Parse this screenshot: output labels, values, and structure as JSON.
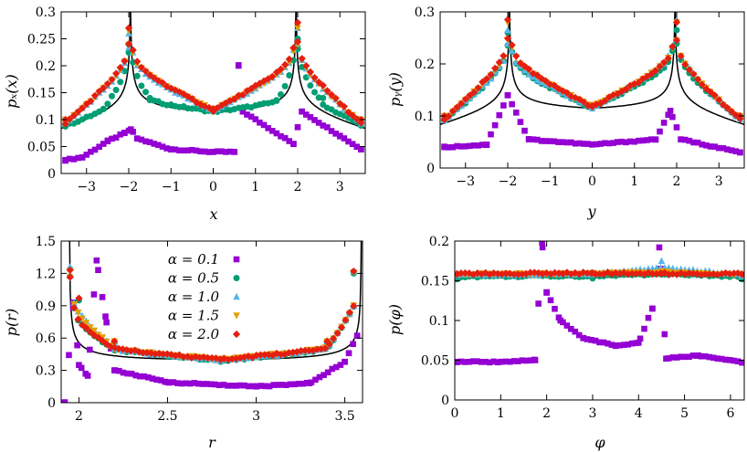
{
  "legend": [
    {
      "label": "α = 0.1",
      "color": "#9400d3",
      "marker": "square"
    },
    {
      "label": "α = 0.5",
      "color": "#009e73",
      "marker": "circle"
    },
    {
      "label": "α = 1.0",
      "color": "#56b4e9",
      "marker": "triangle-up"
    },
    {
      "label": "α = 1.5",
      "color": "#e69f00",
      "marker": "triangle-down"
    },
    {
      "label": "α = 2.0",
      "color": "#e51e10",
      "marker": "diamond"
    }
  ],
  "chart_data": [
    {
      "type": "scatter",
      "panel": "top-left",
      "xlabel": "x",
      "ylabel": "p_x(x)",
      "xlim": [
        -3.6,
        3.6
      ],
      "ylim": [
        0,
        0.3
      ],
      "xticks": [
        "−3",
        "−2",
        "−1",
        "0",
        "1",
        "2",
        "3"
      ],
      "xtick_values": [
        -3,
        -2,
        -1,
        0,
        1,
        2,
        3
      ],
      "yticks": [
        "0",
        "0.05",
        "0.1",
        "0.15",
        "0.2",
        "0.25",
        "0.3"
      ],
      "ytick_values": [
        0,
        0.05,
        0.1,
        0.15,
        0.2,
        0.25,
        0.3
      ],
      "theory_curve": "arcsine density with singularities at ±1.96",
      "series": [
        {
          "name": "α = 0.1",
          "points": [
            [
              -3.5,
              0.025
            ],
            [
              -3.1,
              0.03
            ],
            [
              -2.5,
              0.06
            ],
            [
              -2.1,
              0.075
            ],
            [
              -1.95,
              0.082
            ],
            [
              -1.8,
              0.065
            ],
            [
              -1,
              0.045
            ],
            [
              0,
              0.04
            ],
            [
              0.5,
              0.04
            ],
            [
              0.6,
              0.2
            ],
            [
              0.7,
              0.115
            ],
            [
              1.9,
              0.055
            ],
            [
              2.1,
              0.115
            ],
            [
              3.0,
              0.07
            ],
            [
              3.5,
              0.045
            ]
          ]
        },
        {
          "name": "α = 0.5",
          "points": [
            [
              -3.5,
              0.09
            ],
            [
              -2.6,
              0.12
            ],
            [
              -2.0,
              0.24
            ],
            [
              -1.5,
              0.14
            ],
            [
              0,
              0.115
            ],
            [
              1.5,
              0.135
            ],
            [
              2.0,
              0.25
            ],
            [
              2.6,
              0.14
            ],
            [
              3.5,
              0.095
            ]
          ]
        },
        {
          "name": "α = 1.0",
          "points": [
            [
              -3.5,
              0.1
            ],
            [
              -2.0,
              0.26
            ],
            [
              0,
              0.118
            ],
            [
              2.0,
              0.27
            ],
            [
              3.5,
              0.1
            ]
          ]
        },
        {
          "name": "α = 1.5",
          "points": [
            [
              -3.5,
              0.1
            ],
            [
              -2.0,
              0.265
            ],
            [
              0,
              0.12
            ],
            [
              2.0,
              0.27
            ],
            [
              3.5,
              0.1
            ]
          ]
        },
        {
          "name": "α = 2.0",
          "points": [
            [
              -3.5,
              0.1
            ],
            [
              -2.0,
              0.27
            ],
            [
              0,
              0.12
            ],
            [
              2.0,
              0.28
            ],
            [
              3.5,
              0.1
            ]
          ]
        }
      ]
    },
    {
      "type": "scatter",
      "panel": "top-right",
      "xlabel": "y",
      "ylabel": "p_y(y)",
      "xlim": [
        -3.6,
        3.6
      ],
      "ylim": [
        0,
        0.3
      ],
      "xticks": [
        "−3",
        "−2",
        "−1",
        "0",
        "1",
        "2",
        "3"
      ],
      "xtick_values": [
        -3,
        -2,
        -1,
        0,
        1,
        2,
        3
      ],
      "yticks": [
        "0",
        "0.1",
        "0.2",
        "0.3"
      ],
      "ytick_values": [
        0,
        0.1,
        0.2,
        0.3
      ],
      "theory_curve": "arcsine density with singularities at ±1.96",
      "series": [
        {
          "name": "α = 0.1",
          "points": [
            [
              -3.5,
              0.04
            ],
            [
              -2.5,
              0.045
            ],
            [
              -2.0,
              0.14
            ],
            [
              -1.5,
              0.055
            ],
            [
              0,
              0.045
            ],
            [
              1.5,
              0.055
            ],
            [
              1.85,
              0.11
            ],
            [
              2.1,
              0.055
            ],
            [
              3.5,
              0.03
            ]
          ]
        },
        {
          "name": "α = 0.5",
          "points": [
            [
              -3.5,
              0.095
            ],
            [
              -2.0,
              0.26
            ],
            [
              0,
              0.115
            ],
            [
              2.0,
              0.265
            ],
            [
              3.5,
              0.1
            ]
          ]
        },
        {
          "name": "α = 1.0",
          "points": [
            [
              -3.5,
              0.1
            ],
            [
              -2.0,
              0.265
            ],
            [
              0,
              0.118
            ],
            [
              2.0,
              0.285
            ],
            [
              3.5,
              0.1
            ]
          ]
        },
        {
          "name": "α = 1.5",
          "points": [
            [
              -3.5,
              0.1
            ],
            [
              -2.0,
              0.28
            ],
            [
              0,
              0.12
            ],
            [
              2.0,
              0.28
            ],
            [
              3.5,
              0.1
            ]
          ]
        },
        {
          "name": "α = 2.0",
          "points": [
            [
              -3.5,
              0.1
            ],
            [
              -2.0,
              0.285
            ],
            [
              0,
              0.12
            ],
            [
              2.0,
              0.28
            ],
            [
              3.5,
              0.1
            ]
          ]
        }
      ]
    },
    {
      "type": "scatter",
      "panel": "bottom-left",
      "xlabel": "r",
      "ylabel": "p(r)",
      "xlim": [
        1.9,
        3.6
      ],
      "ylim": [
        0,
        1.5
      ],
      "xticks": [
        "2",
        "2.5",
        "3",
        "3.5"
      ],
      "xtick_values": [
        2,
        2.5,
        3,
        3.5
      ],
      "yticks": [
        "0",
        "0.3",
        "0.6",
        "0.9",
        "1.2",
        "1.5"
      ],
      "ytick_values": [
        0,
        0.3,
        0.6,
        0.9,
        1.2,
        1.5
      ],
      "theory_curve": "density diverging at r = 1.96 and r = 3.58",
      "series": [
        {
          "name": "α = 0.1",
          "points": [
            [
              1.92,
              0
            ],
            [
              1.97,
              0.93
            ],
            [
              2.0,
              0.35
            ],
            [
              2.05,
              0.25
            ],
            [
              2.1,
              1.32
            ],
            [
              2.15,
              0.8
            ],
            [
              2.2,
              0.3
            ],
            [
              2.5,
              0.19
            ],
            [
              3.0,
              0.15
            ],
            [
              3.3,
              0.18
            ],
            [
              3.5,
              0.38
            ],
            [
              3.57,
              0.62
            ]
          ]
        },
        {
          "name": "α = 0.5",
          "points": [
            [
              1.95,
              1.24
            ],
            [
              2.0,
              0.95
            ],
            [
              2.2,
              0.55
            ],
            [
              2.8,
              0.38
            ],
            [
              3.4,
              0.55
            ],
            [
              3.55,
              1.2
            ]
          ]
        },
        {
          "name": "α = 1.0",
          "points": [
            [
              1.95,
              1.26
            ],
            [
              2.2,
              0.56
            ],
            [
              2.8,
              0.39
            ],
            [
              3.4,
              0.56
            ],
            [
              3.55,
              1.22
            ]
          ]
        },
        {
          "name": "α = 1.5",
          "points": [
            [
              1.95,
              1.22
            ],
            [
              2.2,
              0.57
            ],
            [
              2.8,
              0.4
            ],
            [
              3.4,
              0.57
            ],
            [
              3.55,
              1.21
            ]
          ]
        },
        {
          "name": "α = 2.0",
          "points": [
            [
              1.95,
              1.23
            ],
            [
              2.0,
              0.97
            ],
            [
              2.2,
              0.57
            ],
            [
              2.8,
              0.4
            ],
            [
              3.4,
              0.57
            ],
            [
              3.55,
              1.22
            ]
          ]
        }
      ]
    },
    {
      "type": "scatter",
      "panel": "bottom-right",
      "xlabel": "φ",
      "ylabel": "p(φ)",
      "xlim": [
        0,
        6.3
      ],
      "ylim": [
        0,
        0.2
      ],
      "xticks": [
        "0",
        "1",
        "2",
        "3",
        "4",
        "5",
        "6"
      ],
      "xtick_values": [
        0,
        1,
        2,
        3,
        4,
        5,
        6
      ],
      "yticks": [
        "0",
        "0.05",
        "0.1",
        "0.15",
        "0.2"
      ],
      "ytick_values": [
        0,
        0.05,
        0.1,
        0.15,
        0.2
      ],
      "theory_curve": "uniform density 1/(2π) ≈ 0.159",
      "series": [
        {
          "name": "α = 0.1",
          "points": [
            [
              0.05,
              0.048
            ],
            [
              1.0,
              0.048
            ],
            [
              1.75,
              0.05
            ],
            [
              1.9,
              0.198
            ],
            [
              2.0,
              0.135
            ],
            [
              2.3,
              0.1
            ],
            [
              2.8,
              0.078
            ],
            [
              3.5,
              0.068
            ],
            [
              4.0,
              0.072
            ],
            [
              4.3,
              0.115
            ],
            [
              4.45,
              0.192
            ],
            [
              4.6,
              0.052
            ],
            [
              5.3,
              0.056
            ],
            [
              6.25,
              0.047
            ]
          ]
        },
        {
          "name": "α = 0.5",
          "points": [
            [
              0.05,
              0.152
            ],
            [
              3.0,
              0.153
            ],
            [
              4.5,
              0.158
            ],
            [
              6.25,
              0.152
            ]
          ]
        },
        {
          "name": "α = 1.0",
          "points": [
            [
              0.05,
              0.157
            ],
            [
              3.0,
              0.158
            ],
            [
              4.5,
              0.175
            ],
            [
              6.25,
              0.156
            ]
          ]
        },
        {
          "name": "α = 1.5",
          "points": [
            [
              0.05,
              0.158
            ],
            [
              3.0,
              0.159
            ],
            [
              4.5,
              0.162
            ],
            [
              6.25,
              0.157
            ]
          ]
        },
        {
          "name": "α = 2.0",
          "points": [
            [
              0.05,
              0.159
            ],
            [
              3.0,
              0.16
            ],
            [
              4.5,
              0.159
            ],
            [
              6.25,
              0.158
            ]
          ]
        }
      ]
    }
  ]
}
